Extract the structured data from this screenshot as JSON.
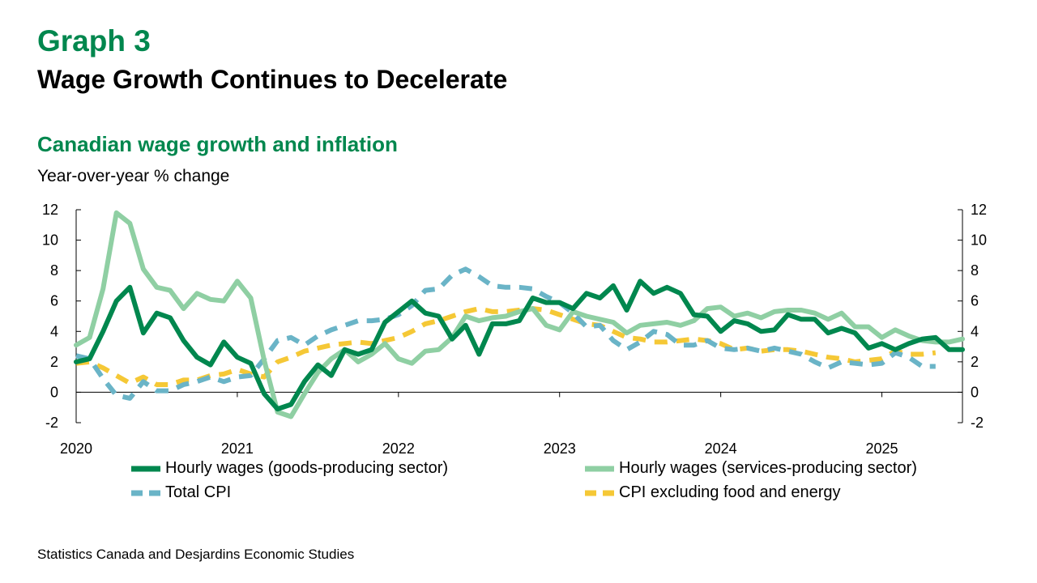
{
  "header": {
    "graph_number": "Graph 3",
    "title": "Wage Growth Continues to Decelerate"
  },
  "source": "Statistics Canada and Desjardins Economic Studies",
  "chart_data": {
    "type": "line",
    "title": "Canadian wage growth and inflation",
    "ylabel": "Year-over-year % change",
    "xlabel": "",
    "ylim": [
      -2,
      12
    ],
    "yticks": [
      -2,
      0,
      2,
      4,
      6,
      8,
      10,
      12
    ],
    "xlim": [
      2020.0,
      2025.5
    ],
    "xticks": [
      2020,
      2021,
      2022,
      2023,
      2024,
      2025
    ],
    "xtick_labels": [
      "2020",
      "2021",
      "2022",
      "2023",
      "2024",
      "2025"
    ],
    "dual_axis": true,
    "grid": false,
    "legend_position": "bottom",
    "series": [
      {
        "name": "Hourly wages (goods-producing sector)",
        "color": "#00874e",
        "dash": "solid",
        "values": [
          2.0,
          2.2,
          4.0,
          6.0,
          6.9,
          3.9,
          5.2,
          4.9,
          3.4,
          2.3,
          1.8,
          3.3,
          2.3,
          1.9,
          -0.1,
          -1.1,
          -0.8,
          0.7,
          1.8,
          1.1,
          2.8,
          2.5,
          2.8,
          4.6,
          5.3,
          6.0,
          5.2,
          5.0,
          3.5,
          4.4,
          2.5,
          4.5,
          4.5,
          4.7,
          6.2,
          5.9,
          5.9,
          5.5,
          6.5,
          6.2,
          7.0,
          5.4,
          7.3,
          6.5,
          6.9,
          6.5,
          5.1,
          5.0,
          4.0,
          4.7,
          4.5,
          4.0,
          4.1,
          5.1,
          4.8,
          4.8,
          3.9,
          4.2,
          3.9,
          2.9,
          3.2,
          2.8,
          3.2,
          3.5,
          3.6,
          2.8,
          2.8
        ]
      },
      {
        "name": "Hourly wages (services-producing sector)",
        "color": "#8fcfa3",
        "dash": "solid",
        "values": [
          3.1,
          3.6,
          6.8,
          11.8,
          11.1,
          8.1,
          6.9,
          6.7,
          5.5,
          6.5,
          6.1,
          6.0,
          7.3,
          6.2,
          2.1,
          -1.3,
          -1.6,
          -0.1,
          1.3,
          2.2,
          2.8,
          2.0,
          2.5,
          3.2,
          2.2,
          1.9,
          2.7,
          2.8,
          3.6,
          5.0,
          4.7,
          4.9,
          5.0,
          5.3,
          5.5,
          4.4,
          4.1,
          5.3,
          5.0,
          4.8,
          4.6,
          3.9,
          4.4,
          4.5,
          4.6,
          4.4,
          4.7,
          5.5,
          5.6,
          5.0,
          5.2,
          4.9,
          5.3,
          5.4,
          5.4,
          5.2,
          4.8,
          5.2,
          4.3,
          4.3,
          3.6,
          4.1,
          3.7,
          3.4,
          3.3,
          3.3,
          3.5
        ]
      },
      {
        "name": "Total CPI",
        "color": "#6ab4c7",
        "dash": "dashed",
        "values": [
          2.4,
          2.2,
          0.9,
          -0.2,
          -0.4,
          0.7,
          0.1,
          0.1,
          0.5,
          0.7,
          1.0,
          0.7,
          1.0,
          1.1,
          2.2,
          3.4,
          3.6,
          3.1,
          3.7,
          4.1,
          4.4,
          4.7,
          4.7,
          4.8,
          5.1,
          5.7,
          6.7,
          6.8,
          7.7,
          8.1,
          7.6,
          7.0,
          6.9,
          6.9,
          6.8,
          6.3,
          5.9,
          5.2,
          4.3,
          4.4,
          3.4,
          2.8,
          3.3,
          4.0,
          3.8,
          3.1,
          3.1,
          3.4,
          2.9,
          2.8,
          2.9,
          2.7,
          2.9,
          2.7,
          2.5,
          2.0,
          1.6,
          2.0,
          1.9,
          1.8,
          1.9,
          2.6,
          2.3,
          1.7,
          1.7
        ]
      },
      {
        "name": "CPI excluding food and energy",
        "color": "#f5c836",
        "dash": "dashed",
        "values": [
          1.9,
          2.0,
          1.6,
          1.1,
          0.6,
          1.0,
          0.5,
          0.5,
          0.8,
          0.8,
          1.1,
          1.2,
          1.5,
          1.2,
          1.0,
          2.0,
          2.3,
          2.7,
          2.9,
          3.1,
          3.2,
          3.3,
          3.2,
          3.4,
          3.6,
          4.0,
          4.5,
          4.7,
          5.0,
          5.3,
          5.5,
          5.3,
          5.3,
          5.4,
          5.5,
          5.4,
          5.1,
          4.8,
          4.5,
          4.4,
          4.0,
          3.6,
          3.5,
          3.3,
          3.3,
          3.4,
          3.5,
          3.4,
          3.2,
          2.8,
          2.9,
          2.7,
          2.8,
          2.8,
          2.7,
          2.5,
          2.3,
          2.2,
          2.0,
          2.1,
          2.2,
          2.7,
          2.5,
          2.5,
          2.6
        ]
      }
    ]
  }
}
